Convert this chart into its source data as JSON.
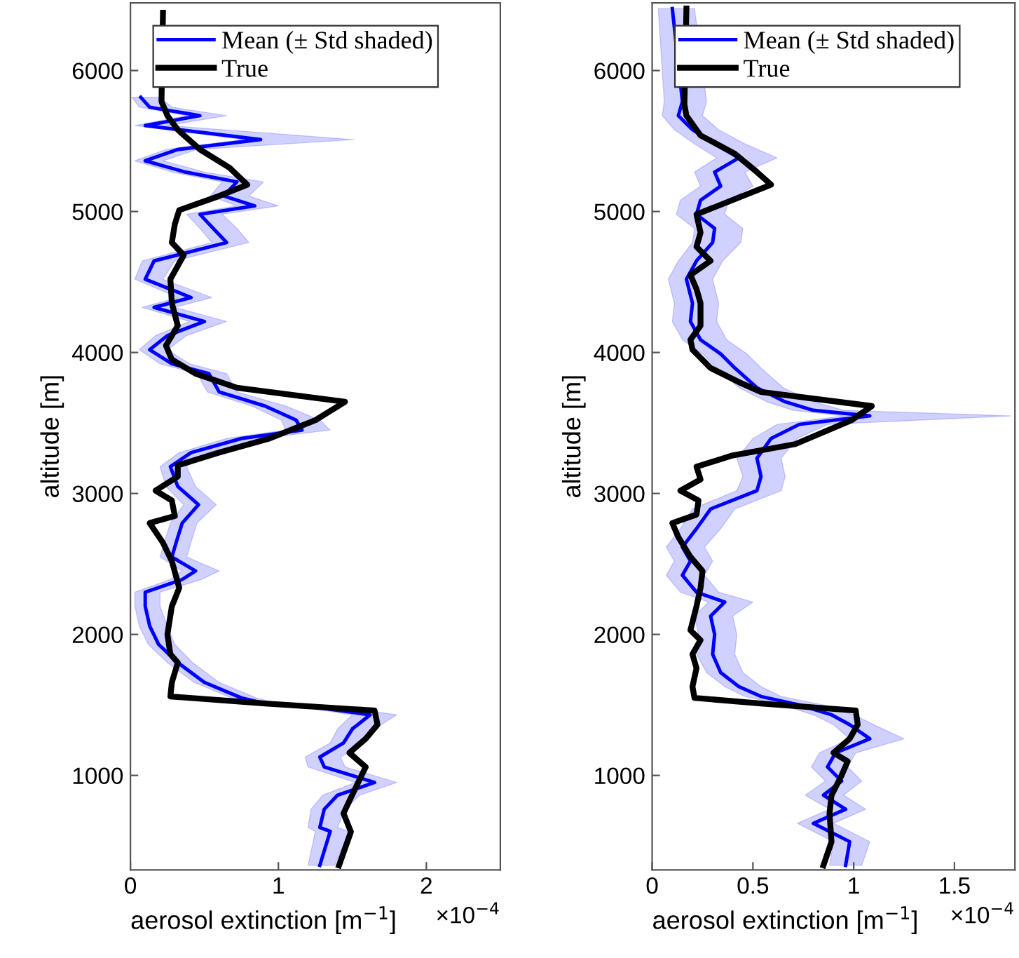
{
  "chart_data": [
    {
      "type": "line",
      "orientation": "horizontal",
      "xlabel": "aerosol extinction [m$^{−1}$]",
      "ylabel": "altitude [m]",
      "xlim": [
        0,
        2.5
      ],
      "xticks": [
        0,
        1,
        2
      ],
      "ylim": [
        330,
        6480
      ],
      "yticks": [
        1000,
        2000,
        3000,
        4000,
        5000,
        6000
      ],
      "legend": "top left",
      "annotations": [
        "×10$^{−4}$"
      ],
      "series": [
        {
          "name": "Mean (± Std shaded)",
          "color": "#0000ff",
          "x": [
            362,
            603,
            631,
            760,
            860,
            950,
            1060,
            1130,
            1230,
            1330,
            1430,
            1480,
            1510,
            1550,
            1660,
            1800,
            1930,
            2060,
            2200,
            2300,
            2390,
            2450,
            2550,
            2690,
            2790,
            2920,
            3050,
            3190,
            3290,
            3390,
            3450,
            3520,
            3620,
            3720,
            3850,
            3920,
            4020,
            4120,
            4220,
            4320,
            4390,
            4520,
            4650,
            4780,
            4880,
            4980,
            5040,
            5110,
            5210,
            5280,
            5360,
            5440,
            5510,
            5610,
            5680,
            5740,
            5810
          ],
          "values": [
            1.28,
            1.35,
            1.28,
            1.31,
            1.4,
            1.65,
            1.31,
            1.28,
            1.44,
            1.5,
            1.62,
            1.28,
            0.91,
            0.75,
            0.5,
            0.32,
            0.19,
            0.13,
            0.1,
            0.1,
            0.35,
            0.44,
            0.28,
            0.32,
            0.35,
            0.46,
            0.32,
            0.27,
            0.41,
            0.75,
            1.16,
            1.12,
            0.91,
            0.6,
            0.53,
            0.28,
            0.13,
            0.25,
            0.5,
            0.16,
            0.41,
            0.1,
            0.16,
            0.65,
            0.56,
            0.47,
            0.84,
            0.63,
            0.72,
            0.37,
            0.1,
            0.32,
            0.88,
            0.1,
            0.47,
            0.13,
            0.07
          ],
          "lower": [
            1.2,
            1.25,
            1.2,
            1.22,
            1.3,
            1.52,
            1.2,
            1.18,
            1.35,
            1.4,
            1.5,
            1.18,
            0.85,
            0.68,
            0.43,
            0.25,
            0.12,
            0.06,
            0.03,
            0.03,
            0.27,
            0.35,
            0.2,
            0.24,
            0.27,
            0.36,
            0.24,
            0.2,
            0.33,
            0.65,
            1.05,
            1.02,
            0.82,
            0.52,
            0.45,
            0.2,
            0.06,
            0.17,
            0.4,
            0.08,
            0.32,
            0.03,
            0.08,
            0.55,
            0.47,
            0.38,
            0.72,
            0.54,
            0.62,
            0.28,
            0.03,
            0.24,
            0.76,
            0.03,
            0.38,
            0.06,
            0.01
          ],
          "upper": [
            1.38,
            1.48,
            1.4,
            1.45,
            1.55,
            1.8,
            1.45,
            1.42,
            1.58,
            1.65,
            1.8,
            1.45,
            1.0,
            0.85,
            0.6,
            0.42,
            0.3,
            0.25,
            0.2,
            0.2,
            0.48,
            0.6,
            0.38,
            0.42,
            0.45,
            0.58,
            0.44,
            0.38,
            0.52,
            0.88,
            1.35,
            1.28,
            1.05,
            0.72,
            0.65,
            0.4,
            0.25,
            0.38,
            0.65,
            0.3,
            0.55,
            0.22,
            0.3,
            0.8,
            0.72,
            0.62,
            1.0,
            0.8,
            0.9,
            0.5,
            0.22,
            0.45,
            1.51,
            0.25,
            0.65,
            0.28,
            0.2
          ]
        },
        {
          "name": "True",
          "color": "#000000",
          "x": [
            362,
            600,
            731,
            930,
            1060,
            1160,
            1260,
            1360,
            1460,
            1510,
            1560,
            1660,
            1800,
            1860,
            2000,
            2200,
            2330,
            2520,
            2650,
            2790,
            2840,
            2950,
            3020,
            3120,
            3200,
            3290,
            3390,
            3520,
            3650,
            3750,
            3850,
            3950,
            4050,
            4190,
            4350,
            4520,
            4690,
            4780,
            4910,
            5010,
            5110,
            5190,
            5310,
            5440,
            5580,
            5680,
            5780,
            6410
          ],
          "values": [
            1.41,
            1.49,
            1.44,
            1.53,
            1.59,
            1.48,
            1.59,
            1.67,
            1.65,
            0.91,
            0.27,
            0.28,
            0.32,
            0.27,
            0.25,
            0.28,
            0.33,
            0.28,
            0.22,
            0.13,
            0.3,
            0.28,
            0.17,
            0.32,
            0.32,
            0.6,
            0.94,
            1.25,
            1.45,
            0.72,
            0.44,
            0.28,
            0.24,
            0.32,
            0.28,
            0.27,
            0.36,
            0.28,
            0.3,
            0.33,
            0.6,
            0.79,
            0.67,
            0.47,
            0.32,
            0.25,
            0.21,
            0.22
          ]
        }
      ]
    },
    {
      "type": "line",
      "orientation": "horizontal",
      "xlabel": "aerosol extinction [m$^{−1}$]",
      "ylabel": "altitude [m]",
      "xlim": [
        0,
        1.8
      ],
      "xticks": [
        0,
        0.5,
        1,
        1.5
      ],
      "ylim": [
        330,
        6480
      ],
      "yticks": [
        1000,
        2000,
        3000,
        4000,
        5000,
        6000
      ],
      "legend": "top left",
      "annotations": [
        "×10$^{−4}$"
      ],
      "series": [
        {
          "name": "Mean (± Std shaded)",
          "color": "#0000ff",
          "x": [
            362,
            530,
            660,
            760,
            860,
            960,
            1060,
            1160,
            1260,
            1360,
            1430,
            1500,
            1560,
            1630,
            1730,
            1860,
            2000,
            2130,
            2230,
            2300,
            2420,
            2520,
            2620,
            2750,
            2890,
            3020,
            3120,
            3250,
            3390,
            3490,
            3550,
            3590,
            3650,
            3750,
            3890,
            3990,
            4090,
            4220,
            4350,
            4520,
            4650,
            4780,
            4880,
            4980,
            5080,
            5180,
            5280,
            5380,
            5480,
            5580,
            5680,
            5780,
            6440
          ],
          "values": [
            0.96,
            0.98,
            0.8,
            0.96,
            0.85,
            0.94,
            0.87,
            0.91,
            1.08,
            0.98,
            0.89,
            0.73,
            0.54,
            0.43,
            0.34,
            0.3,
            0.31,
            0.29,
            0.36,
            0.22,
            0.15,
            0.19,
            0.15,
            0.22,
            0.29,
            0.52,
            0.54,
            0.52,
            0.59,
            0.73,
            1.08,
            0.8,
            0.66,
            0.52,
            0.41,
            0.34,
            0.24,
            0.19,
            0.2,
            0.17,
            0.22,
            0.3,
            0.31,
            0.22,
            0.24,
            0.34,
            0.31,
            0.43,
            0.31,
            0.2,
            0.13,
            0.15,
            0.1
          ],
          "lower": [
            0.88,
            0.9,
            0.72,
            0.88,
            0.76,
            0.86,
            0.79,
            0.83,
            0.98,
            0.9,
            0.8,
            0.64,
            0.46,
            0.36,
            0.27,
            0.22,
            0.23,
            0.21,
            0.28,
            0.14,
            0.07,
            0.11,
            0.07,
            0.14,
            0.2,
            0.42,
            0.45,
            0.42,
            0.5,
            0.62,
            0.95,
            0.7,
            0.57,
            0.43,
            0.32,
            0.25,
            0.15,
            0.1,
            0.11,
            0.08,
            0.13,
            0.2,
            0.21,
            0.12,
            0.14,
            0.24,
            0.21,
            0.32,
            0.21,
            0.11,
            0.05,
            0.06,
            0.03
          ],
          "upper": [
            1.04,
            1.08,
            0.9,
            1.06,
            0.95,
            1.04,
            0.97,
            1.01,
            1.25,
            1.1,
            1.0,
            0.85,
            0.64,
            0.54,
            0.45,
            0.41,
            0.42,
            0.4,
            0.5,
            0.33,
            0.26,
            0.3,
            0.26,
            0.34,
            0.41,
            0.64,
            0.66,
            0.64,
            0.72,
            0.87,
            1.78,
            0.95,
            0.8,
            0.65,
            0.54,
            0.47,
            0.37,
            0.32,
            0.33,
            0.3,
            0.35,
            0.44,
            0.45,
            0.36,
            0.38,
            0.5,
            0.46,
            0.62,
            0.46,
            0.33,
            0.25,
            0.27,
            0.21
          ]
        },
        {
          "name": "True",
          "color": "#000000",
          "x": [
            362,
            530,
            730,
            860,
            1000,
            1100,
            1160,
            1260,
            1360,
            1460,
            1510,
            1550,
            1630,
            1760,
            1860,
            1960,
            2030,
            2200,
            2330,
            2450,
            2550,
            2690,
            2790,
            2850,
            2950,
            3020,
            3100,
            3190,
            3270,
            3350,
            3520,
            3620,
            3720,
            3790,
            3890,
            4020,
            4090,
            4190,
            4350,
            4450,
            4550,
            4650,
            4750,
            4850,
            4980,
            5110,
            5190,
            5280,
            5410,
            5540,
            5680,
            5760,
            6440
          ],
          "values": [
            0.85,
            0.89,
            0.88,
            0.89,
            0.94,
            0.97,
            0.9,
            0.98,
            1.02,
            1.01,
            0.54,
            0.21,
            0.2,
            0.22,
            0.2,
            0.24,
            0.19,
            0.22,
            0.24,
            0.25,
            0.19,
            0.13,
            0.1,
            0.22,
            0.23,
            0.14,
            0.24,
            0.22,
            0.4,
            0.71,
            0.99,
            1.09,
            0.54,
            0.43,
            0.29,
            0.2,
            0.19,
            0.24,
            0.24,
            0.22,
            0.19,
            0.29,
            0.22,
            0.24,
            0.22,
            0.45,
            0.59,
            0.52,
            0.41,
            0.24,
            0.17,
            0.16,
            0.17
          ]
        }
      ]
    }
  ]
}
